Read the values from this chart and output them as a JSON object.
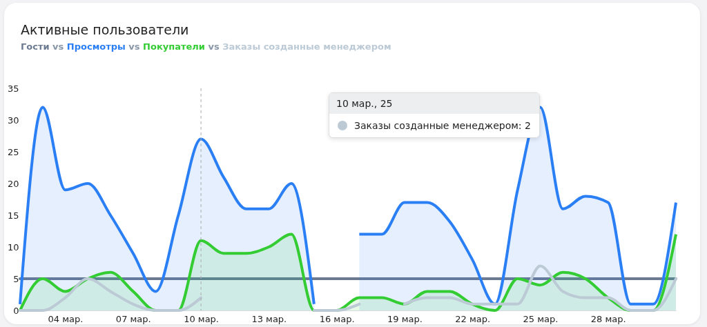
{
  "chart_data": {
    "type": "area",
    "title": "Активные пользователи",
    "legend": "top left",
    "x": [
      "--03-02",
      "--03-03",
      "--03-04",
      "--03-05",
      "--03-06",
      "--03-07",
      "--03-08",
      "--03-09",
      "--03-10",
      "--03-11",
      "--03-12",
      "--03-13",
      "--03-14",
      "--03-15",
      "--03-16",
      "--03-17",
      "--03-18",
      "--03-19",
      "--03-20",
      "--03-21",
      "--03-22",
      "--03-23",
      "--03-24",
      "--03-25",
      "--03-26",
      "--03-27",
      "--03-28",
      "--03-29",
      "--03-30",
      "--03-31"
    ],
    "series": [
      {
        "name": "Гости",
        "type": "line",
        "color": "#6b7a90",
        "values": [
          5,
          5,
          5,
          5,
          5,
          5,
          5,
          5,
          5,
          5,
          5,
          5,
          5,
          5,
          5,
          5,
          5,
          5,
          5,
          5,
          5,
          5,
          5,
          5,
          5,
          5,
          5,
          5,
          5,
          5
        ]
      },
      {
        "name": "Просмотры",
        "color": "#2b7ff5",
        "values": [
          1,
          32,
          19,
          20,
          15,
          9,
          3,
          15,
          27,
          21,
          16,
          16,
          20,
          1,
          null,
          12,
          12,
          17,
          17,
          14,
          8,
          1,
          19,
          32,
          16,
          18,
          17,
          1,
          1,
          17
        ]
      },
      {
        "name": "Покупатели",
        "color": "#33cc33",
        "values": [
          0,
          5,
          3,
          5,
          6,
          3,
          0,
          0,
          11,
          9,
          9,
          10,
          12,
          0,
          0,
          2,
          2,
          1,
          3,
          3,
          1,
          0,
          5,
          4,
          6,
          5,
          2,
          0,
          0,
          12
        ]
      },
      {
        "name": "Заказы созданные менеджером",
        "type": "line",
        "color": "#bccad6",
        "values": [
          0,
          0,
          2,
          5,
          3,
          1,
          0,
          0,
          2,
          null,
          null,
          null,
          null,
          0,
          0,
          1,
          null,
          1,
          2,
          2,
          1,
          1,
          1,
          7,
          3,
          2,
          2,
          0,
          0,
          5
        ]
      }
    ],
    "xlim": [
      "--03-02",
      "--03-31"
    ],
    "xticks": [
      {
        "value": "--03-04",
        "label": "04 мар."
      },
      {
        "value": "--03-07",
        "label": "07 мар."
      },
      {
        "value": "--03-10",
        "label": "10 мар."
      },
      {
        "value": "--03-13",
        "label": "13 мар."
      },
      {
        "value": "--03-16",
        "label": "16 мар."
      },
      {
        "value": "--03-19",
        "label": "19 мар."
      },
      {
        "value": "--03-22",
        "label": "22 мар."
      },
      {
        "value": "--03-25",
        "label": "25 мар."
      },
      {
        "value": "--03-28",
        "label": "28 мар."
      }
    ],
    "ylim": [
      0,
      35
    ],
    "yticks": [
      0,
      5,
      10,
      15,
      20,
      25,
      30,
      35
    ],
    "ref_lines": [
      {
        "axis": "x",
        "value": "--03-10",
        "color": "#aaaaaa",
        "line_style": "dashed"
      }
    ],
    "annotations": [
      "vs",
      "10 мар., 25",
      "Заказы созданные менеджером: 2"
    ]
  }
}
